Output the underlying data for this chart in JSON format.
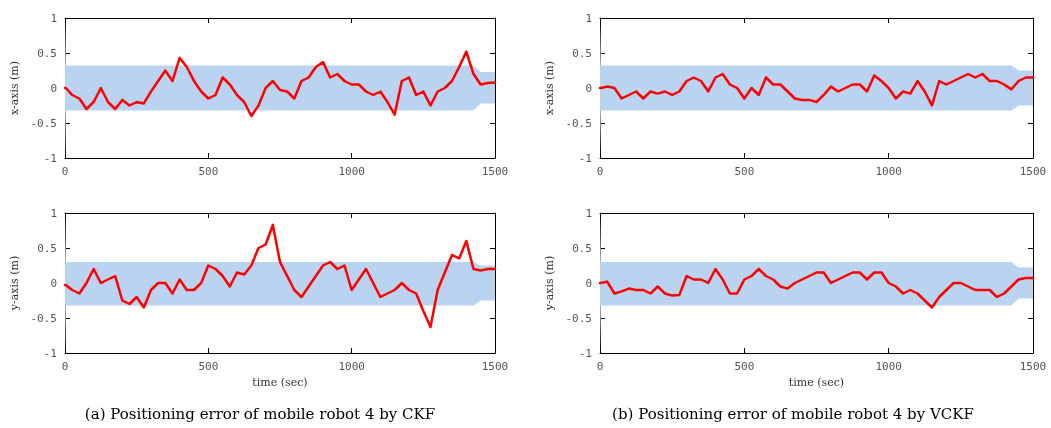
{
  "chart_data": [
    {
      "type": "line",
      "ylabel": "x-axis (m)",
      "xlim": [
        0,
        1500
      ],
      "xticks": [
        0,
        500,
        1000,
        1500
      ],
      "ylim": [
        -1,
        1
      ],
      "yticks": [
        -1,
        -0.5,
        0,
        0.5,
        1
      ],
      "grid": false,
      "marker": "none",
      "line_style": "solid",
      "x": [
        0,
        3,
        25,
        50,
        75,
        100,
        125,
        150,
        175,
        200,
        225,
        250,
        275,
        300,
        325,
        350,
        375,
        400,
        425,
        450,
        475,
        500,
        525,
        550,
        575,
        600,
        625,
        650,
        675,
        700,
        725,
        750,
        775,
        800,
        825,
        850,
        875,
        900,
        925,
        950,
        975,
        1000,
        1025,
        1050,
        1075,
        1100,
        1125,
        1150,
        1175,
        1200,
        1225,
        1250,
        1275,
        1300,
        1325,
        1350,
        1375,
        1400,
        1425,
        1450,
        1475,
        1500
      ],
      "series": [
        {
          "color": "#ff0000",
          "values": [
            0,
            0,
            -0.1,
            -0.15,
            -0.3,
            -0.2,
            0,
            -0.2,
            -0.3,
            -0.17,
            -0.25,
            -0.2,
            -0.22,
            -0.05,
            0.1,
            0.25,
            0.1,
            0.43,
            0.3,
            0.1,
            -0.05,
            -0.15,
            -0.1,
            0.15,
            0.05,
            -0.1,
            -0.2,
            -0.4,
            -0.25,
            0,
            0.1,
            -0.03,
            -0.05,
            -0.15,
            0.1,
            0.15,
            0.3,
            0.37,
            0.15,
            0.2,
            0.1,
            0.05,
            0.05,
            -0.05,
            -0.1,
            -0.05,
            -0.2,
            -0.38,
            0.1,
            0.15,
            -0.1,
            -0.05,
            -0.25,
            -0.05,
            0,
            0.1,
            0.3,
            0.52,
            0.2,
            0.05,
            0.07,
            0.08
          ],
          "lower": [
            -1,
            -0.32,
            -0.32,
            -0.32,
            -0.32,
            -0.32,
            -0.32,
            -0.32,
            -0.32,
            -0.32,
            -0.32,
            -0.32,
            -0.32,
            -0.32,
            -0.32,
            -0.32,
            -0.32,
            -0.32,
            -0.32,
            -0.32,
            -0.32,
            -0.32,
            -0.32,
            -0.32,
            -0.32,
            -0.32,
            -0.32,
            -0.32,
            -0.32,
            -0.32,
            -0.32,
            -0.32,
            -0.32,
            -0.32,
            -0.32,
            -0.32,
            -0.32,
            -0.32,
            -0.32,
            -0.32,
            -0.32,
            -0.32,
            -0.32,
            -0.32,
            -0.32,
            -0.32,
            -0.32,
            -0.32,
            -0.32,
            -0.32,
            -0.32,
            -0.32,
            -0.32,
            -0.32,
            -0.32,
            -0.32,
            -0.32,
            -0.32,
            -0.32,
            -0.22,
            -0.22,
            -0.22
          ],
          "upper": [
            1,
            0.32,
            0.32,
            0.32,
            0.32,
            0.32,
            0.32,
            0.32,
            0.32,
            0.32,
            0.32,
            0.32,
            0.32,
            0.32,
            0.32,
            0.32,
            0.32,
            0.32,
            0.32,
            0.32,
            0.32,
            0.32,
            0.32,
            0.32,
            0.32,
            0.32,
            0.32,
            0.32,
            0.32,
            0.32,
            0.32,
            0.32,
            0.32,
            0.32,
            0.32,
            0.32,
            0.32,
            0.32,
            0.32,
            0.32,
            0.32,
            0.32,
            0.32,
            0.32,
            0.32,
            0.32,
            0.32,
            0.32,
            0.32,
            0.32,
            0.32,
            0.32,
            0.32,
            0.32,
            0.32,
            0.32,
            0.32,
            0.32,
            0.32,
            0.23,
            0.23,
            0.23
          ]
        }
      ]
    },
    {
      "type": "line",
      "ylabel": "x-axis (m)",
      "xlim": [
        0,
        1500
      ],
      "xticks": [
        0,
        500,
        1000,
        1500
      ],
      "ylim": [
        -1,
        1
      ],
      "yticks": [
        -1,
        -0.5,
        0,
        0.5,
        1
      ],
      "grid": false,
      "marker": "none",
      "line_style": "solid",
      "x": [
        0,
        3,
        25,
        50,
        75,
        100,
        125,
        150,
        175,
        200,
        225,
        250,
        275,
        300,
        325,
        350,
        375,
        400,
        425,
        450,
        475,
        500,
        525,
        550,
        575,
        600,
        625,
        650,
        675,
        700,
        725,
        750,
        775,
        800,
        825,
        850,
        875,
        900,
        925,
        950,
        975,
        1000,
        1025,
        1050,
        1075,
        1100,
        1125,
        1150,
        1175,
        1200,
        1225,
        1250,
        1275,
        1300,
        1325,
        1350,
        1375,
        1400,
        1425,
        1450,
        1475,
        1500
      ],
      "series": [
        {
          "color": "#ff0000",
          "values": [
            0,
            0,
            0.02,
            0,
            -0.15,
            -0.1,
            -0.05,
            -0.15,
            -0.05,
            -0.08,
            -0.05,
            -0.1,
            -0.05,
            0.1,
            0.15,
            0.1,
            -0.05,
            0.15,
            0.2,
            0.05,
            0,
            -0.15,
            0,
            -0.1,
            0.15,
            0.05,
            0.05,
            -0.05,
            -0.15,
            -0.17,
            -0.17,
            -0.2,
            -0.1,
            0.02,
            -0.05,
            0,
            0.05,
            0.05,
            -0.05,
            0.18,
            0.1,
            0,
            -0.15,
            -0.05,
            -0.08,
            0.1,
            -0.05,
            -0.25,
            0.1,
            0.05,
            0.1,
            0.15,
            0.2,
            0.15,
            0.2,
            0.1,
            0.1,
            0.05,
            -0.02,
            0.1,
            0.15,
            0.15
          ],
          "lower": [
            -1,
            -0.32,
            -0.32,
            -0.32,
            -0.32,
            -0.32,
            -0.32,
            -0.32,
            -0.32,
            -0.32,
            -0.32,
            -0.32,
            -0.32,
            -0.32,
            -0.32,
            -0.32,
            -0.32,
            -0.32,
            -0.32,
            -0.32,
            -0.32,
            -0.32,
            -0.32,
            -0.32,
            -0.32,
            -0.32,
            -0.32,
            -0.32,
            -0.32,
            -0.32,
            -0.32,
            -0.32,
            -0.32,
            -0.32,
            -0.32,
            -0.32,
            -0.32,
            -0.32,
            -0.32,
            -0.32,
            -0.32,
            -0.32,
            -0.32,
            -0.32,
            -0.32,
            -0.32,
            -0.32,
            -0.32,
            -0.32,
            -0.32,
            -0.32,
            -0.32,
            -0.32,
            -0.32,
            -0.32,
            -0.32,
            -0.32,
            -0.32,
            -0.32,
            -0.25,
            -0.25,
            -0.25
          ],
          "upper": [
            1,
            0.32,
            0.32,
            0.32,
            0.32,
            0.32,
            0.32,
            0.32,
            0.32,
            0.32,
            0.32,
            0.32,
            0.32,
            0.32,
            0.32,
            0.32,
            0.32,
            0.32,
            0.32,
            0.32,
            0.32,
            0.32,
            0.32,
            0.32,
            0.32,
            0.32,
            0.32,
            0.32,
            0.32,
            0.32,
            0.32,
            0.32,
            0.32,
            0.32,
            0.32,
            0.32,
            0.32,
            0.32,
            0.32,
            0.32,
            0.32,
            0.32,
            0.32,
            0.32,
            0.32,
            0.32,
            0.32,
            0.32,
            0.32,
            0.32,
            0.32,
            0.32,
            0.32,
            0.32,
            0.32,
            0.32,
            0.32,
            0.32,
            0.32,
            0.25,
            0.25,
            0.25
          ]
        }
      ]
    },
    {
      "type": "line",
      "title": "(a) Positioning error of mobile robot 4 by CKF",
      "xlabel": "time (sec)",
      "ylabel": "y-axis (m)",
      "xlim": [
        0,
        1500
      ],
      "xticks": [
        0,
        500,
        1000,
        1500
      ],
      "ylim": [
        -1,
        1
      ],
      "yticks": [
        -1,
        -0.5,
        0,
        0.5,
        1
      ],
      "grid": false,
      "marker": "none",
      "line_style": "solid",
      "x": [
        0,
        3,
        25,
        50,
        75,
        100,
        125,
        150,
        175,
        200,
        225,
        250,
        275,
        300,
        325,
        350,
        375,
        400,
        425,
        450,
        475,
        500,
        525,
        550,
        575,
        600,
        625,
        650,
        675,
        700,
        725,
        750,
        775,
        800,
        825,
        850,
        875,
        900,
        925,
        950,
        975,
        1000,
        1025,
        1050,
        1075,
        1100,
        1125,
        1150,
        1175,
        1200,
        1225,
        1250,
        1275,
        1300,
        1325,
        1350,
        1375,
        1400,
        1425,
        1450,
        1475,
        1500
      ],
      "series": [
        {
          "color": "#ff0000",
          "values": [
            -0.03,
            -0.03,
            -0.1,
            -0.15,
            0,
            0.2,
            0,
            0.05,
            0.1,
            -0.25,
            -0.3,
            -0.2,
            -0.35,
            -0.1,
            0,
            0,
            -0.15,
            0.05,
            -0.1,
            -0.1,
            0,
            0.25,
            0.2,
            0.1,
            -0.05,
            0.15,
            0.12,
            0.25,
            0.5,
            0.55,
            0.83,
            0.3,
            0.1,
            -0.1,
            -0.2,
            -0.05,
            0.1,
            0.25,
            0.3,
            0.2,
            0.25,
            -0.1,
            0.05,
            0.2,
            0,
            -0.2,
            -0.15,
            -0.1,
            0,
            -0.1,
            -0.15,
            -0.4,
            -0.63,
            -0.1,
            0.15,
            0.4,
            0.35,
            0.6,
            0.2,
            0.18,
            0.2,
            0.2
          ],
          "lower": [
            -1,
            -0.32,
            -0.32,
            -0.32,
            -0.32,
            -0.32,
            -0.32,
            -0.32,
            -0.32,
            -0.32,
            -0.32,
            -0.32,
            -0.32,
            -0.32,
            -0.32,
            -0.32,
            -0.32,
            -0.32,
            -0.32,
            -0.32,
            -0.32,
            -0.32,
            -0.32,
            -0.32,
            -0.32,
            -0.32,
            -0.32,
            -0.32,
            -0.32,
            -0.32,
            -0.32,
            -0.32,
            -0.32,
            -0.32,
            -0.32,
            -0.32,
            -0.32,
            -0.32,
            -0.32,
            -0.32,
            -0.32,
            -0.32,
            -0.32,
            -0.32,
            -0.32,
            -0.32,
            -0.32,
            -0.32,
            -0.32,
            -0.32,
            -0.32,
            -0.32,
            -0.32,
            -0.32,
            -0.32,
            -0.32,
            -0.32,
            -0.32,
            -0.32,
            -0.25,
            -0.25,
            -0.25
          ],
          "upper": [
            1,
            0.3,
            0.3,
            0.3,
            0.3,
            0.3,
            0.3,
            0.3,
            0.3,
            0.3,
            0.3,
            0.3,
            0.3,
            0.3,
            0.3,
            0.3,
            0.3,
            0.3,
            0.3,
            0.3,
            0.3,
            0.3,
            0.3,
            0.3,
            0.3,
            0.3,
            0.3,
            0.3,
            0.3,
            0.3,
            0.3,
            0.3,
            0.3,
            0.3,
            0.3,
            0.3,
            0.3,
            0.3,
            0.3,
            0.3,
            0.3,
            0.3,
            0.3,
            0.3,
            0.3,
            0.3,
            0.3,
            0.3,
            0.3,
            0.3,
            0.3,
            0.3,
            0.3,
            0.3,
            0.3,
            0.3,
            0.3,
            0.3,
            0.3,
            0.25,
            0.25,
            0.25
          ]
        }
      ]
    },
    {
      "type": "line",
      "title": "(b) Positioning error of mobile robot 4 by VCKF",
      "xlabel": "time (sec)",
      "ylabel": "y-axis (m)",
      "xlim": [
        0,
        1500
      ],
      "xticks": [
        0,
        500,
        1000,
        1500
      ],
      "ylim": [
        -1,
        1
      ],
      "yticks": [
        -1,
        -0.5,
        0,
        0.5,
        1
      ],
      "grid": false,
      "marker": "none",
      "line_style": "solid",
      "x": [
        0,
        3,
        25,
        50,
        75,
        100,
        125,
        150,
        175,
        200,
        225,
        250,
        275,
        300,
        325,
        350,
        375,
        400,
        425,
        450,
        475,
        500,
        525,
        550,
        575,
        600,
        625,
        650,
        675,
        700,
        725,
        750,
        775,
        800,
        825,
        850,
        875,
        900,
        925,
        950,
        975,
        1000,
        1025,
        1050,
        1075,
        1100,
        1125,
        1150,
        1175,
        1200,
        1225,
        1250,
        1275,
        1300,
        1325,
        1350,
        1375,
        1400,
        1425,
        1450,
        1475,
        1500
      ],
      "series": [
        {
          "color": "#ff0000",
          "values": [
            0,
            0,
            0.02,
            -0.15,
            -0.12,
            -0.08,
            -0.1,
            -0.1,
            -0.15,
            -0.05,
            -0.15,
            -0.18,
            -0.17,
            0.1,
            0.05,
            0.05,
            0,
            0.2,
            0.05,
            -0.15,
            -0.15,
            0.05,
            0.1,
            0.2,
            0.1,
            0.05,
            -0.05,
            -0.08,
            0,
            0.05,
            0.1,
            0.15,
            0.15,
            0,
            0.05,
            0.1,
            0.15,
            0.15,
            0.05,
            0.15,
            0.15,
            0,
            -0.05,
            -0.15,
            -0.1,
            -0.15,
            -0.25,
            -0.35,
            -0.2,
            -0.1,
            0,
            0,
            -0.05,
            -0.1,
            -0.1,
            -0.1,
            -0.2,
            -0.15,
            -0.05,
            0.05,
            0.07,
            0.07
          ],
          "lower": [
            -1,
            -0.32,
            -0.32,
            -0.32,
            -0.32,
            -0.32,
            -0.32,
            -0.32,
            -0.32,
            -0.32,
            -0.32,
            -0.32,
            -0.32,
            -0.32,
            -0.32,
            -0.32,
            -0.32,
            -0.32,
            -0.32,
            -0.32,
            -0.32,
            -0.32,
            -0.32,
            -0.32,
            -0.32,
            -0.32,
            -0.32,
            -0.32,
            -0.32,
            -0.32,
            -0.32,
            -0.32,
            -0.32,
            -0.32,
            -0.32,
            -0.32,
            -0.32,
            -0.32,
            -0.32,
            -0.32,
            -0.32,
            -0.32,
            -0.32,
            -0.32,
            -0.32,
            -0.32,
            -0.32,
            -0.32,
            -0.32,
            -0.32,
            -0.32,
            -0.32,
            -0.32,
            -0.32,
            -0.32,
            -0.32,
            -0.32,
            -0.32,
            -0.32,
            -0.22,
            -0.22,
            -0.22
          ],
          "upper": [
            1,
            0.3,
            0.3,
            0.3,
            0.3,
            0.3,
            0.3,
            0.3,
            0.3,
            0.3,
            0.3,
            0.3,
            0.3,
            0.3,
            0.3,
            0.3,
            0.3,
            0.3,
            0.3,
            0.3,
            0.3,
            0.3,
            0.3,
            0.3,
            0.3,
            0.3,
            0.3,
            0.3,
            0.3,
            0.3,
            0.3,
            0.3,
            0.3,
            0.3,
            0.3,
            0.3,
            0.3,
            0.3,
            0.3,
            0.3,
            0.3,
            0.3,
            0.3,
            0.3,
            0.3,
            0.3,
            0.3,
            0.3,
            0.3,
            0.3,
            0.3,
            0.3,
            0.3,
            0.3,
            0.3,
            0.3,
            0.3,
            0.3,
            0.3,
            0.22,
            0.22,
            0.22
          ]
        }
      ]
    }
  ]
}
